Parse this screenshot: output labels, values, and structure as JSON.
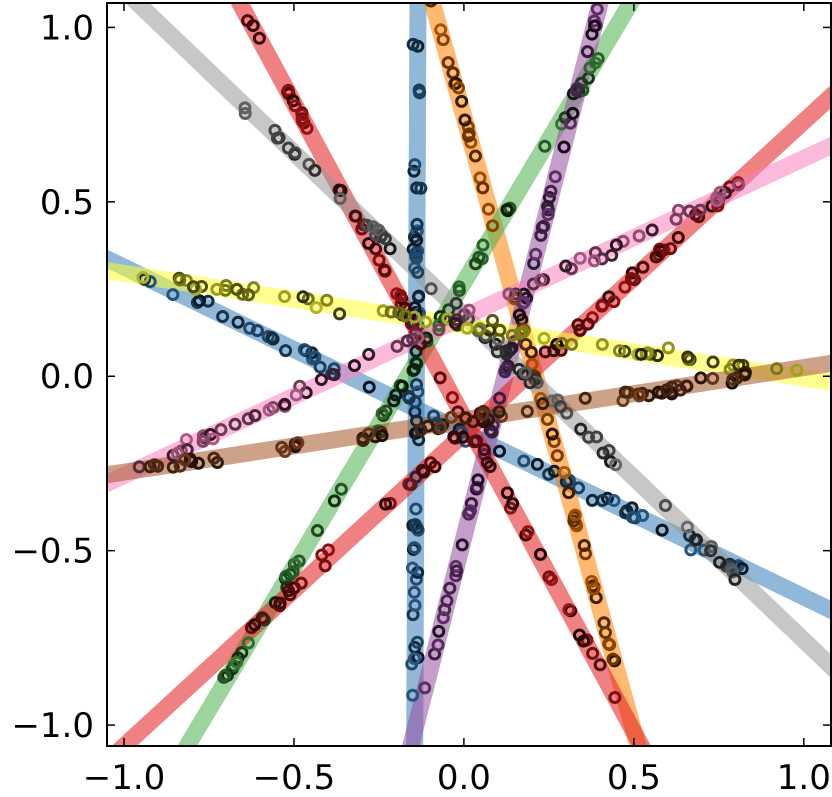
{
  "chart_data": {
    "type": "scatter",
    "title": "",
    "xlabel": "",
    "ylabel": "",
    "xlim": [
      -1.05,
      1.08
    ],
    "ylim": [
      -1.06,
      1.07
    ],
    "grid": false,
    "x_ticks": [
      {
        "value": -1.0,
        "label": "−1.0"
      },
      {
        "value": -0.5,
        "label": "−0.5"
      },
      {
        "value": 0.0,
        "label": "0.0"
      },
      {
        "value": 0.5,
        "label": "0.5"
      },
      {
        "value": 1.0,
        "label": "1.0"
      }
    ],
    "y_ticks": [
      {
        "value": 1.0,
        "label": "1.0"
      },
      {
        "value": 0.5,
        "label": "0.5"
      },
      {
        "value": 0.0,
        "label": "0.0"
      },
      {
        "value": -0.5,
        "label": "−0.5"
      },
      {
        "value": -1.0,
        "label": "−1.0"
      }
    ],
    "series": [
      {
        "color": "#377eb8",
        "line": [
          [
            -0.145,
            -1.1
          ],
          [
            -0.135,
            1.1
          ]
        ],
        "x_range": [
          -0.16,
          -0.13
        ],
        "n": 60
      },
      {
        "color": "#377eb8",
        "line": [
          [
            -1.1,
            0.36
          ],
          [
            1.1,
            -0.68
          ]
        ],
        "x_range": [
          -0.97,
          0.85
        ],
        "n": 60
      },
      {
        "color": "#ff7f00",
        "line": [
          [
            -0.2,
            1.45
          ],
          [
            0.58,
            -1.3
          ]
        ],
        "x_range": [
          -0.15,
          0.45
        ],
        "n": 60
      },
      {
        "color": "#4daf4a",
        "line": [
          [
            -0.9,
            -1.2
          ],
          [
            0.57,
            1.2
          ]
        ],
        "x_range": [
          -0.72,
          0.42
        ],
        "n": 60
      },
      {
        "color": "#984ea3",
        "line": [
          [
            -0.18,
            -1.15
          ],
          [
            0.5,
            1.45
          ]
        ],
        "x_range": [
          -0.12,
          0.43
        ],
        "n": 60
      },
      {
        "color": "#e41a1c",
        "line": [
          [
            -1.1,
            -1.15
          ],
          [
            1.1,
            0.82
          ]
        ],
        "x_range": [
          -0.68,
          0.83
        ],
        "n": 60
      },
      {
        "color": "#e41a1c",
        "line": [
          [
            -0.87,
            1.45
          ],
          [
            0.6,
            -1.2
          ]
        ],
        "x_range": [
          -0.67,
          0.45
        ],
        "n": 60
      },
      {
        "color": "#999999",
        "line": [
          [
            -1.1,
            1.2
          ],
          [
            1.1,
            -0.85
          ]
        ],
        "x_range": [
          -0.67,
          0.83
        ],
        "n": 60
      },
      {
        "color": "#ffff33",
        "line": [
          [
            -1.1,
            0.31
          ],
          [
            1.1,
            -0.02
          ]
        ],
        "x_range": [
          -0.95,
          1.0
        ],
        "n": 60
      },
      {
        "color": "#f781bf",
        "line": [
          [
            -1.1,
            -0.33
          ],
          [
            1.1,
            0.67
          ]
        ],
        "x_range": [
          -0.97,
          0.83
        ],
        "n": 60
      },
      {
        "color": "#a65628",
        "line": [
          [
            -1.1,
            -0.29
          ],
          [
            1.1,
            0.04
          ]
        ],
        "x_range": [
          -0.97,
          0.87
        ],
        "n": 60
      }
    ]
  }
}
